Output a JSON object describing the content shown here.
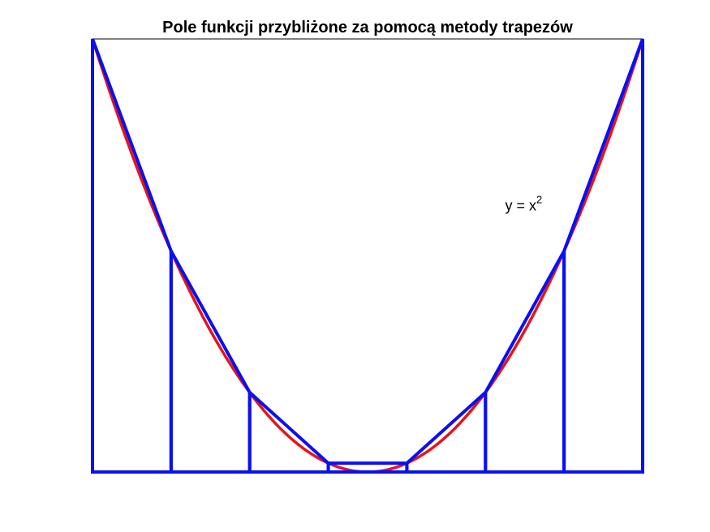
{
  "chart_data": {
    "type": "line",
    "title": "Pole funkcji przybliżone za pomocą metody trapezów",
    "xlim": [
      -3.5,
      3.5
    ],
    "ylim": [
      0,
      12.25
    ],
    "grid": false,
    "axes_visible": false,
    "series": [
      {
        "role": "curve",
        "function": "x^2",
        "color": "#e8131a",
        "x_range": [
          -3.5,
          3.5
        ]
      },
      {
        "role": "trapezoids",
        "color": "#0a10f0",
        "x": [
          -3.5,
          -2.5,
          -1.5,
          -0.5,
          0.5,
          1.5,
          2.5,
          3.5
        ],
        "y": [
          12.25,
          6.25,
          2.25,
          0.25,
          0.25,
          2.25,
          6.25,
          12.25
        ]
      }
    ],
    "annotation": {
      "base": "y = x",
      "superscript": "2",
      "x": 1.75,
      "y": 7.4
    }
  }
}
